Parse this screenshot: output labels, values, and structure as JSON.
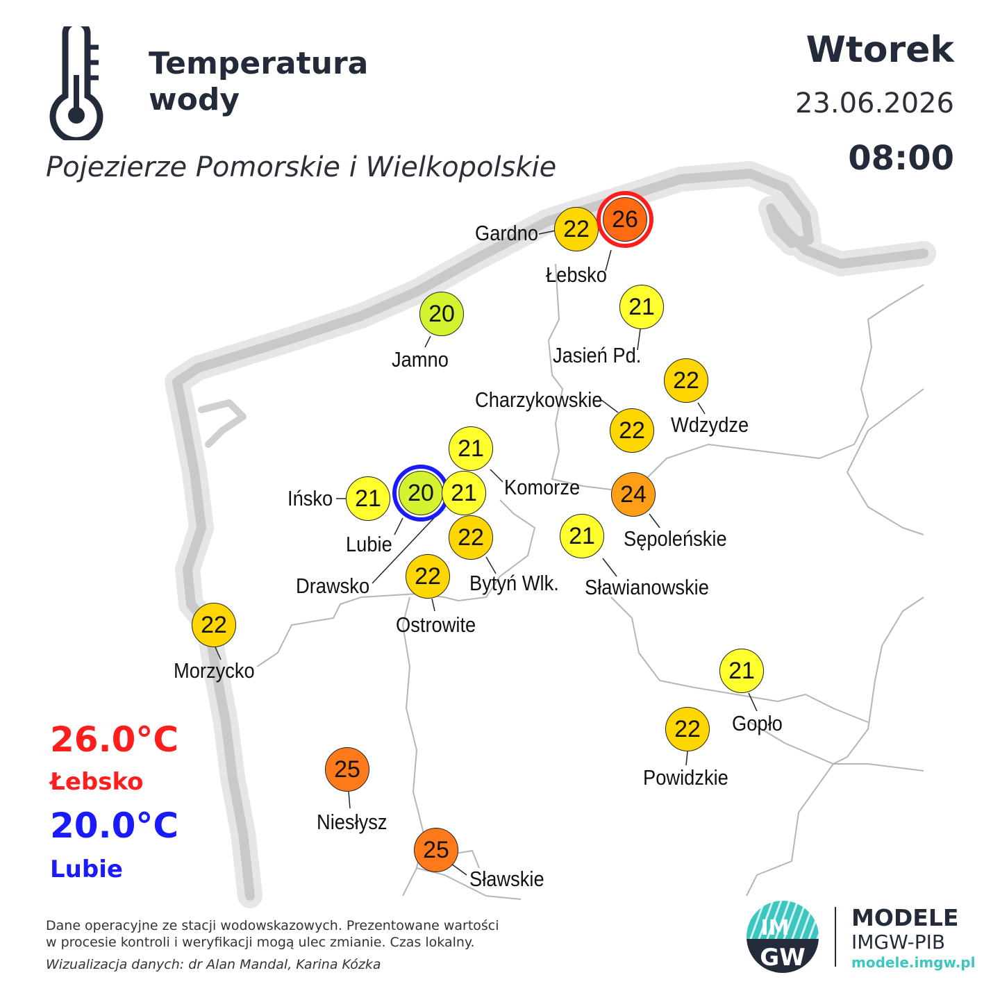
{
  "header": {
    "title_line1": "Temperatura",
    "title_line2": "wody",
    "region": "Pojezierze Pomorskie i Wielkopolskie",
    "day": "Wtorek",
    "date": "23.06.2026",
    "time": "08:00"
  },
  "extremes": {
    "max_value": "26.0°C",
    "max_station": "Łebsko",
    "min_value": "20.0°C",
    "min_station": "Lubie",
    "max_color": "#ff1e1e",
    "min_color": "#1a1aff"
  },
  "stations": [
    {
      "name": "Gardno",
      "value": "22",
      "color": "#ffd700"
    },
    {
      "name": "Łebsko",
      "value": "26",
      "color": "#ff6a13",
      "highlight": "max"
    },
    {
      "name": "Jamno",
      "value": "20",
      "color": "#d4f230"
    },
    {
      "name": "Jasień Pd.",
      "value": "21",
      "color": "#ffff2e"
    },
    {
      "name": "Wdzydze",
      "value": "22",
      "color": "#ffd700"
    },
    {
      "name": "Charzykowskie",
      "value": "22",
      "color": "#ffd700"
    },
    {
      "name": "Komorze",
      "value": "21",
      "color": "#ffff2e"
    },
    {
      "name": "Ińsko",
      "value": "21",
      "color": "#ffff2e"
    },
    {
      "name": "Lubie",
      "value": "20",
      "color": "#d4f230",
      "highlight": "min"
    },
    {
      "name": "Drawsko",
      "value": "21",
      "color": "#ffff2e"
    },
    {
      "name": "Bytyń Wlk.",
      "value": "22",
      "color": "#ffd700"
    },
    {
      "name": "Ostrowite",
      "value": "22",
      "color": "#ffd700"
    },
    {
      "name": "Sępoleńskie",
      "value": "24",
      "color": "#ff9f17"
    },
    {
      "name": "Sławianowskie",
      "value": "21",
      "color": "#ffff2e"
    },
    {
      "name": "Morzycko",
      "value": "22",
      "color": "#ffd700"
    },
    {
      "name": "Gopło",
      "value": "21",
      "color": "#ffff2e"
    },
    {
      "name": "Powidzkie",
      "value": "22",
      "color": "#ffd700"
    },
    {
      "name": "Niesłysz",
      "value": "25",
      "color": "#ff7a1a"
    },
    {
      "name": "Sławskie",
      "value": "25",
      "color": "#ff7a1a"
    }
  ],
  "footer": {
    "line1": "Dane operacyjne ze stacji wodowskazowych. Prezentowane wartości",
    "line2": "w procesie kontroli i weryfikacji mogą ulec zmianie. Czas lokalny.",
    "credit": "Wizualizacja danych: dr Alan Mandal, Karina Kózka"
  },
  "logo": {
    "text_top": "IM",
    "text_bottom": "GW",
    "name": "MODELE",
    "org": "IMGW-PIB",
    "url": "modele.imgw.pl",
    "accent": "#3cc6c0"
  }
}
